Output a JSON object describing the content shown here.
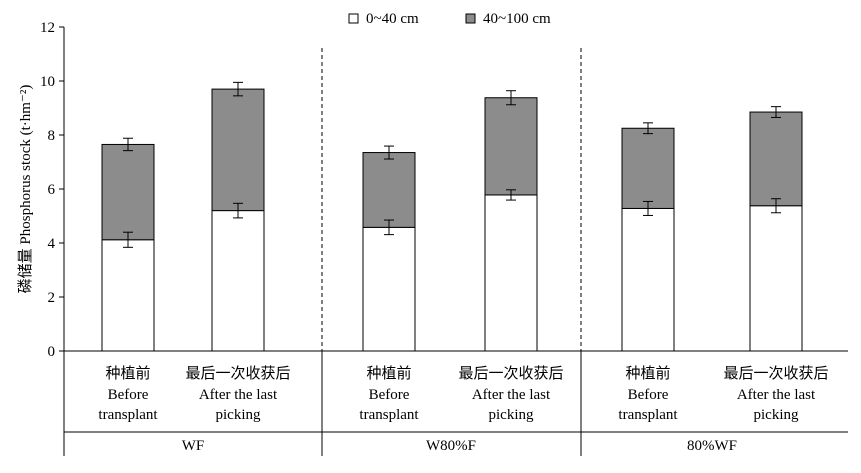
{
  "chart_data": {
    "type": "bar",
    "stacked": true,
    "ylabel": "磷储量 Phosphorus stock (t·hm⁻²)",
    "ylim": [
      0,
      12
    ],
    "yticks": [
      0,
      2,
      4,
      6,
      8,
      10,
      12
    ],
    "grid": false,
    "legend_position": "top",
    "categories": [
      {
        "zh": "种植前",
        "en": [
          "Before",
          "transplant"
        ]
      },
      {
        "zh": "最后一次收获后",
        "en": [
          "After the last",
          "picking"
        ]
      },
      {
        "zh": "种植前",
        "en": [
          "Before",
          "transplant"
        ]
      },
      {
        "zh": "最后一次收获后",
        "en": [
          "After the last",
          "picking"
        ]
      },
      {
        "zh": "种植前",
        "en": [
          "Before",
          "transplant"
        ]
      },
      {
        "zh": "最后一次收获后",
        "en": [
          "After the last",
          "picking"
        ]
      }
    ],
    "groups": [
      "WF",
      "W80%F",
      "80%WF"
    ],
    "series": [
      {
        "name": "0~40 cm",
        "color": "#ffffff",
        "values": [
          4.12,
          5.2,
          4.58,
          5.78,
          5.28,
          5.38
        ],
        "errors": [
          0.28,
          0.27,
          0.27,
          0.19,
          0.26,
          0.26
        ]
      },
      {
        "name": "40~100 cm",
        "color": "#8c8c8c",
        "values": [
          3.53,
          4.5,
          2.77,
          3.6,
          2.97,
          3.47
        ],
        "errors": [
          0.23,
          0.25,
          0.24,
          0.26,
          0.2,
          0.2
        ]
      }
    ]
  }
}
